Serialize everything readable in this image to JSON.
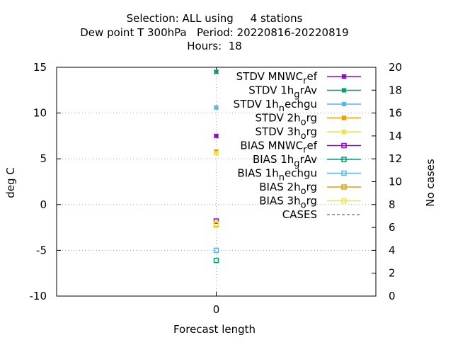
{
  "chart_data": {
    "type": "scatter",
    "title_lines": [
      "Selection: ALL using     4 stations",
      "Dew point T 300hPa   Period: 20220816-20220819",
      "Hours:  18"
    ],
    "xlabel": "Forecast length",
    "ylabel": "deg C",
    "y2label": "No cases",
    "x": [
      0
    ],
    "xticks": [
      "0"
    ],
    "ylim": [
      -10,
      15
    ],
    "yticks": [
      "-10",
      "-5",
      "0",
      "5",
      "10",
      "15"
    ],
    "y2lim": [
      0,
      20
    ],
    "y2ticks": [
      "0",
      "2",
      "4",
      "6",
      "8",
      "10",
      "12",
      "14",
      "16",
      "18",
      "20"
    ],
    "grid": true,
    "legend_position": "top-right",
    "series": [
      {
        "name": "STDV MNWC_ref",
        "label_main": "STDV MNWC",
        "label_sub": "r",
        "label_tail": "ef",
        "color": "#9400d3",
        "marker": "star",
        "values": [
          7.5
        ]
      },
      {
        "name": "STDV 1h_grAv",
        "label_main": "STDV 1h",
        "label_sub": "g",
        "label_tail": "rAv",
        "color": "#009e73",
        "marker": "star",
        "values": [
          14.5
        ]
      },
      {
        "name": "STDV 1h_nechgu",
        "label_main": "STDV 1h",
        "label_sub": "n",
        "label_tail": "echgu",
        "color": "#56b4e9",
        "marker": "star",
        "values": [
          10.6
        ]
      },
      {
        "name": "STDV 2h_org",
        "label_main": "STDV 2h",
        "label_sub": "o",
        "label_tail": "rg",
        "color": "#e69f00",
        "marker": "star",
        "values": [
          5.8
        ]
      },
      {
        "name": "STDV 3h_org",
        "label_main": "STDV 3h",
        "label_sub": "o",
        "label_tail": "rg",
        "color": "#f0e442",
        "marker": "star",
        "values": [
          5.6
        ]
      },
      {
        "name": "BIAS MNWC_ref",
        "label_main": "BIAS MNWC",
        "label_sub": "r",
        "label_tail": "ef",
        "color": "#9400d3",
        "marker": "square",
        "values": [
          -1.8
        ]
      },
      {
        "name": "BIAS 1h_grAv",
        "label_main": "BIAS 1h",
        "label_sub": "g",
        "label_tail": "rAv",
        "color": "#009e73",
        "marker": "square",
        "values": [
          -6.1
        ]
      },
      {
        "name": "BIAS 1h_nechgu",
        "label_main": "BIAS 1h",
        "label_sub": "n",
        "label_tail": "echgu",
        "color": "#56b4e9",
        "marker": "square",
        "values": [
          -5.0
        ]
      },
      {
        "name": "BIAS 2h_org",
        "label_main": "BIAS 2h",
        "label_sub": "o",
        "label_tail": "rg",
        "color": "#e69f00",
        "marker": "square",
        "values": [
          -2.2
        ]
      },
      {
        "name": "BIAS 3h_org",
        "label_main": "BIAS 3h",
        "label_sub": "o",
        "label_tail": "rg",
        "color": "#f0e442",
        "marker": "square",
        "values": [
          -2.1
        ]
      },
      {
        "name": "CASES",
        "label_main": "CASES",
        "label_sub": "",
        "label_tail": "",
        "color": "#808080",
        "marker": "dashed",
        "axis": "y2",
        "values": []
      }
    ]
  }
}
